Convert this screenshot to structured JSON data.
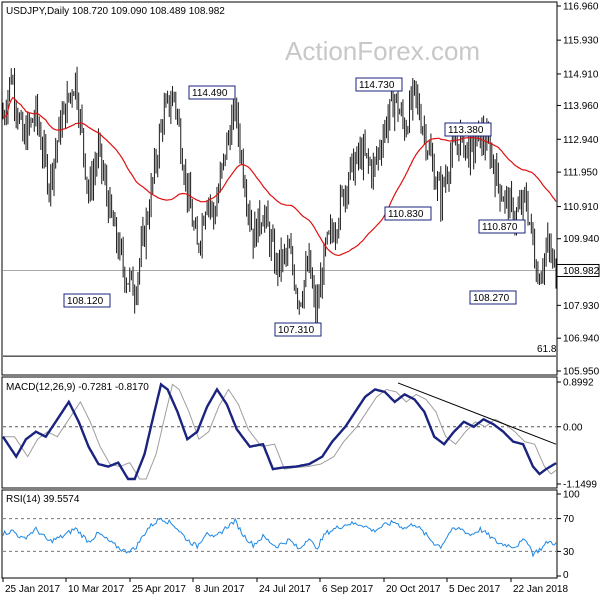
{
  "watermark": "ActionForex.com",
  "colors": {
    "price_bar": "#1a1a1a",
    "moving_average": "#e01010",
    "macd_line": "#1a237e",
    "macd_signal": "#9e9e9e",
    "rsi_line": "#1e88e5",
    "trendline": "#000000",
    "current_price_line": "#aaaaaa",
    "callout_box": "#1a237e"
  },
  "price_panel": {
    "title": "USDJPY,Daily  108.720 109.090 108.489 108.982",
    "y_ticks": [
      "116.960",
      "115.930",
      "114.910",
      "113.960",
      "112.940",
      "111.950",
      "110.910",
      "109.940",
      "108.982",
      "107.930",
      "106.940",
      "105.950"
    ],
    "current_price_label": "108.982",
    "fib_label": "61.8",
    "callouts": [
      {
        "name": "peak-apr",
        "label": "114.490"
      },
      {
        "name": "peak-oct",
        "label": "114.730"
      },
      {
        "name": "peak-dec",
        "label": "113.380"
      },
      {
        "name": "low-oct",
        "label": "110.830"
      },
      {
        "name": "low-jan-a",
        "label": "110.870"
      },
      {
        "name": "low-mar",
        "label": "108.120"
      },
      {
        "name": "low-sep",
        "label": "107.310"
      },
      {
        "name": "low-jan-b",
        "label": "108.270"
      }
    ]
  },
  "macd_panel": {
    "title": "MACD(12,26,9) -0.7281 -0.8170",
    "y_ticks": [
      "0.8992",
      "0.00",
      "-1.1499"
    ]
  },
  "rsi_panel": {
    "title": "RSI(14) 39.5574",
    "y_ticks": [
      "100",
      "70",
      "30",
      "0"
    ]
  },
  "x_axis": {
    "labels": [
      "25 Jan 2017",
      "10 Mar 2017",
      "25 Apr 2017",
      "8 Jun 2017",
      "24 Jul 2017",
      "6 Sep 2017",
      "20 Oct 2017",
      "5 Dec 2017",
      "22 Jan 2018"
    ]
  },
  "chart_data": {
    "type": "ohlc",
    "symbol": "USDJPY",
    "timeframe": "Daily",
    "last_bar": {
      "open": 108.72,
      "high": 109.09,
      "low": 108.489,
      "close": 108.982
    },
    "price_range": [
      105.95,
      116.96
    ],
    "price_anchors": [
      {
        "t": 0,
        "p": 113.6
      },
      {
        "t": 5,
        "p": 114.9
      },
      {
        "t": 12,
        "p": 112.9
      },
      {
        "t": 20,
        "p": 113.7
      },
      {
        "t": 28,
        "p": 111.6
      },
      {
        "t": 35,
        "p": 113.4
      },
      {
        "t": 44,
        "p": 114.8
      },
      {
        "t": 52,
        "p": 111.3
      },
      {
        "t": 58,
        "p": 112.6
      },
      {
        "t": 66,
        "p": 110.5
      },
      {
        "t": 74,
        "p": 108.9
      },
      {
        "t": 80,
        "p": 108.4
      },
      {
        "t": 88,
        "p": 110.7
      },
      {
        "t": 97,
        "p": 113.6
      },
      {
        "t": 104,
        "p": 114.3
      },
      {
        "t": 112,
        "p": 111.4
      },
      {
        "t": 118,
        "p": 109.6
      },
      {
        "t": 124,
        "p": 111.3
      },
      {
        "t": 128,
        "p": 110.6
      },
      {
        "t": 136,
        "p": 112.8
      },
      {
        "t": 141,
        "p": 113.9
      },
      {
        "t": 146,
        "p": 112.0
      },
      {
        "t": 152,
        "p": 110.0
      },
      {
        "t": 158,
        "p": 110.8
      },
      {
        "t": 166,
        "p": 109.1
      },
      {
        "t": 174,
        "p": 109.5
      },
      {
        "t": 180,
        "p": 108.1
      },
      {
        "t": 186,
        "p": 109.2
      },
      {
        "t": 190,
        "p": 107.6
      },
      {
        "t": 196,
        "p": 109.6
      },
      {
        "t": 202,
        "p": 110.4
      },
      {
        "t": 210,
        "p": 111.9
      },
      {
        "t": 218,
        "p": 112.5
      },
      {
        "t": 225,
        "p": 112.0
      },
      {
        "t": 232,
        "p": 113.3
      },
      {
        "t": 238,
        "p": 114.2
      },
      {
        "t": 244,
        "p": 113.3
      },
      {
        "t": 250,
        "p": 114.3
      },
      {
        "t": 256,
        "p": 113.2
      },
      {
        "t": 262,
        "p": 111.9
      },
      {
        "t": 266,
        "p": 111.2
      },
      {
        "t": 272,
        "p": 112.5
      },
      {
        "t": 278,
        "p": 113.0
      },
      {
        "t": 284,
        "p": 112.5
      },
      {
        "t": 290,
        "p": 113.1
      },
      {
        "t": 296,
        "p": 112.6
      },
      {
        "t": 301,
        "p": 111.6
      },
      {
        "t": 306,
        "p": 111.0
      },
      {
        "t": 311,
        "p": 110.6
      },
      {
        "t": 318,
        "p": 111.1
      },
      {
        "t": 325,
        "p": 108.8
      },
      {
        "t": 331,
        "p": 109.7
      },
      {
        "t": 336,
        "p": 108.9
      }
    ],
    "macd_range": [
      -1.1499,
      0.8992
    ],
    "macd_anchors": [
      {
        "t": 0,
        "v": -0.2
      },
      {
        "t": 8,
        "v": -0.6
      },
      {
        "t": 14,
        "v": -0.25
      },
      {
        "t": 20,
        "v": -0.1
      },
      {
        "t": 26,
        "v": -0.2
      },
      {
        "t": 34,
        "v": 0.2
      },
      {
        "t": 40,
        "v": 0.5
      },
      {
        "t": 46,
        "v": 0.1
      },
      {
        "t": 52,
        "v": -0.4
      },
      {
        "t": 58,
        "v": -0.75
      },
      {
        "t": 64,
        "v": -0.8
      },
      {
        "t": 70,
        "v": -0.72
      },
      {
        "t": 76,
        "v": -1.05
      },
      {
        "t": 80,
        "v": -1.05
      },
      {
        "t": 86,
        "v": -0.55
      },
      {
        "t": 92,
        "v": 0.3
      },
      {
        "t": 96,
        "v": 0.85
      },
      {
        "t": 100,
        "v": 0.75
      },
      {
        "t": 106,
        "v": 0.3
      },
      {
        "t": 112,
        "v": -0.25
      },
      {
        "t": 118,
        "v": -0.1
      },
      {
        "t": 124,
        "v": 0.4
      },
      {
        "t": 130,
        "v": 0.75
      },
      {
        "t": 136,
        "v": 0.45
      },
      {
        "t": 142,
        "v": -0.05
      },
      {
        "t": 150,
        "v": -0.4
      },
      {
        "t": 158,
        "v": -0.35
      },
      {
        "t": 164,
        "v": -0.85
      },
      {
        "t": 170,
        "v": -0.82
      },
      {
        "t": 178,
        "v": -0.8
      },
      {
        "t": 186,
        "v": -0.75
      },
      {
        "t": 194,
        "v": -0.6
      },
      {
        "t": 200,
        "v": -0.3
      },
      {
        "t": 208,
        "v": 0.0
      },
      {
        "t": 214,
        "v": 0.3
      },
      {
        "t": 220,
        "v": 0.6
      },
      {
        "t": 226,
        "v": 0.75
      },
      {
        "t": 232,
        "v": 0.7
      },
      {
        "t": 238,
        "v": 0.5
      },
      {
        "t": 244,
        "v": 0.65
      },
      {
        "t": 250,
        "v": 0.55
      },
      {
        "t": 256,
        "v": 0.3
      },
      {
        "t": 262,
        "v": -0.2
      },
      {
        "t": 268,
        "v": -0.35
      },
      {
        "t": 274,
        "v": -0.1
      },
      {
        "t": 280,
        "v": 0.1
      },
      {
        "t": 286,
        "v": 0.0
      },
      {
        "t": 292,
        "v": 0.15
      },
      {
        "t": 298,
        "v": 0.05
      },
      {
        "t": 304,
        "v": -0.1
      },
      {
        "t": 310,
        "v": -0.3
      },
      {
        "t": 316,
        "v": -0.35
      },
      {
        "t": 322,
        "v": -0.8
      },
      {
        "t": 326,
        "v": -0.95
      },
      {
        "t": 330,
        "v": -0.85
      },
      {
        "t": 336,
        "v": -0.73
      }
    ],
    "rsi_range": [
      0,
      100
    ],
    "rsi_anchors": [
      {
        "t": 0,
        "v": 52
      },
      {
        "t": 6,
        "v": 55
      },
      {
        "t": 12,
        "v": 45
      },
      {
        "t": 20,
        "v": 57
      },
      {
        "t": 28,
        "v": 42
      },
      {
        "t": 36,
        "v": 48
      },
      {
        "t": 44,
        "v": 58
      },
      {
        "t": 52,
        "v": 42
      },
      {
        "t": 58,
        "v": 52
      },
      {
        "t": 66,
        "v": 40
      },
      {
        "t": 74,
        "v": 30
      },
      {
        "t": 80,
        "v": 33
      },
      {
        "t": 88,
        "v": 58
      },
      {
        "t": 96,
        "v": 71
      },
      {
        "t": 104,
        "v": 62
      },
      {
        "t": 112,
        "v": 44
      },
      {
        "t": 118,
        "v": 36
      },
      {
        "t": 124,
        "v": 55
      },
      {
        "t": 128,
        "v": 45
      },
      {
        "t": 136,
        "v": 60
      },
      {
        "t": 141,
        "v": 67
      },
      {
        "t": 146,
        "v": 50
      },
      {
        "t": 152,
        "v": 38
      },
      {
        "t": 158,
        "v": 48
      },
      {
        "t": 166,
        "v": 36
      },
      {
        "t": 174,
        "v": 44
      },
      {
        "t": 180,
        "v": 32
      },
      {
        "t": 186,
        "v": 48
      },
      {
        "t": 190,
        "v": 32
      },
      {
        "t": 196,
        "v": 52
      },
      {
        "t": 202,
        "v": 58
      },
      {
        "t": 210,
        "v": 64
      },
      {
        "t": 218,
        "v": 63
      },
      {
        "t": 225,
        "v": 55
      },
      {
        "t": 232,
        "v": 62
      },
      {
        "t": 238,
        "v": 66
      },
      {
        "t": 244,
        "v": 58
      },
      {
        "t": 250,
        "v": 64
      },
      {
        "t": 256,
        "v": 52
      },
      {
        "t": 262,
        "v": 40
      },
      {
        "t": 266,
        "v": 36
      },
      {
        "t": 272,
        "v": 55
      },
      {
        "t": 278,
        "v": 58
      },
      {
        "t": 284,
        "v": 50
      },
      {
        "t": 290,
        "v": 57
      },
      {
        "t": 296,
        "v": 48
      },
      {
        "t": 301,
        "v": 40
      },
      {
        "t": 306,
        "v": 38
      },
      {
        "t": 311,
        "v": 36
      },
      {
        "t": 318,
        "v": 45
      },
      {
        "t": 322,
        "v": 27
      },
      {
        "t": 328,
        "v": 35
      },
      {
        "t": 331,
        "v": 42
      },
      {
        "t": 336,
        "v": 39.56
      }
    ],
    "ma_period": 55,
    "fib_level": {
      "label": "61.8",
      "price": 106.4
    },
    "macd_trendline": [
      {
        "t": 240,
        "v": 0.88
      },
      {
        "t": 340,
        "v": -0.35
      }
    ],
    "rsi_levels": [
      30,
      70
    ]
  }
}
